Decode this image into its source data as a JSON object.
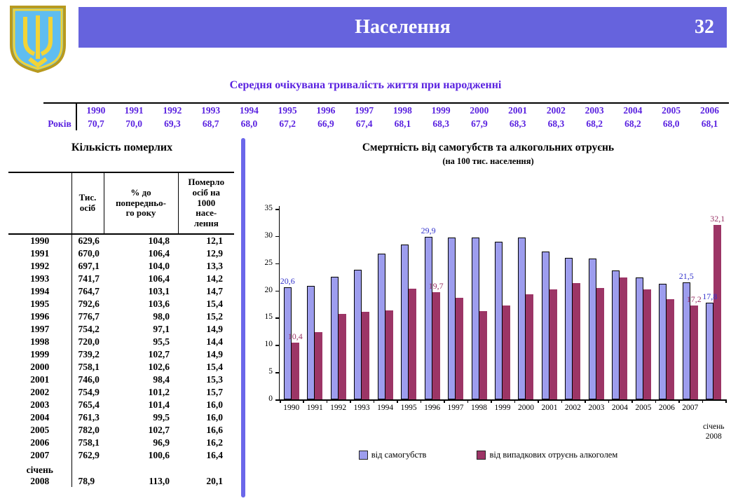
{
  "header": {
    "title": "Населення",
    "page_number": "32",
    "banner_color": "#6663dd",
    "coat_of_arms_icon": "ukraine-coat-of-arms"
  },
  "life_expectancy": {
    "title": "Середня очікувана тривалість життя при народженні",
    "row_label": "Років",
    "years": [
      "1990",
      "1991",
      "1992",
      "1993",
      "1994",
      "1995",
      "1996",
      "1997",
      "1998",
      "1999",
      "2000",
      "2001",
      "2002",
      "2003",
      "2004",
      "2005",
      "2006"
    ],
    "values": [
      "70,7",
      "70,0",
      "69,3",
      "68,7",
      "68,0",
      "67,2",
      "66,9",
      "67,4",
      "68,1",
      "68,3",
      "67,9",
      "68,3",
      "68,3",
      "68,2",
      "68,2",
      "68,0",
      "68,1"
    ]
  },
  "deaths_table": {
    "title": "Кількість померлих",
    "headers": [
      "",
      "Тис.\nосіб",
      "% до\nпопередньо-\nго року",
      "Померло\nосіб на\n1000\nнасе-\nлення"
    ],
    "rows": [
      [
        "1990",
        "629,6",
        "104,8",
        "12,1"
      ],
      [
        "1991",
        "670,0",
        "106,4",
        "12,9"
      ],
      [
        "1992",
        "697,1",
        "104,0",
        "13,3"
      ],
      [
        "1993",
        "741,7",
        "106,4",
        "14,2"
      ],
      [
        "1994",
        "764,7",
        "103,1",
        "14,7"
      ],
      [
        "1995",
        "792,6",
        "103,6",
        "15,4"
      ],
      [
        "1996",
        "776,7",
        "98,0",
        "15,2"
      ],
      [
        "1997",
        "754,2",
        "97,1",
        "14,9"
      ],
      [
        "1998",
        "720,0",
        "95,5",
        "14,4"
      ],
      [
        "1999",
        "739,2",
        "102,7",
        "14,9"
      ],
      [
        "2000",
        "758,1",
        "102,6",
        "15,4"
      ],
      [
        "2001",
        "746,0",
        "98,4",
        "15,3"
      ],
      [
        "2002",
        "754,9",
        "101,2",
        "15,7"
      ],
      [
        "2003",
        "765,4",
        "101,4",
        "16,0"
      ],
      [
        "2004",
        "761,3",
        "99,5",
        "16,0"
      ],
      [
        "2005",
        "782,0",
        "102,7",
        "16,6"
      ],
      [
        "2006",
        "758,1",
        "96,9",
        "16,2"
      ],
      [
        "2007",
        "762,9",
        "100,6",
        "16,4"
      ],
      [
        "січень\n2008",
        "78,9",
        "113,0",
        "20,1"
      ]
    ]
  },
  "chart_data": {
    "type": "bar",
    "title": "Смертність від самогубств та алкогольних отруєнь",
    "subtitle": "(на 100 тис. населення)",
    "categories": [
      "1990",
      "1991",
      "1992",
      "1993",
      "1994",
      "1995",
      "1996",
      "1997",
      "1998",
      "1999",
      "2000",
      "2001",
      "2002",
      "2003",
      "2004",
      "2005",
      "2006",
      "2007",
      "січень\n2008"
    ],
    "series": [
      {
        "name": "від самогубств",
        "color": "#9d9dee",
        "values": [
          20.6,
          20.8,
          22.5,
          23.8,
          26.8,
          28.4,
          29.9,
          29.7,
          29.7,
          29.0,
          29.7,
          27.2,
          26.0,
          25.8,
          23.7,
          22.4,
          21.2,
          21.5,
          17.8
        ]
      },
      {
        "name": "від випадкових отруєнь алкоголем",
        "color": "#9c3566",
        "values": [
          10.4,
          12.4,
          15.7,
          16.1,
          16.3,
          20.3,
          19.7,
          18.6,
          16.2,
          17.3,
          19.3,
          20.2,
          21.4,
          20.4,
          22.4,
          20.2,
          18.4,
          17.2,
          32.1
        ]
      }
    ],
    "ylim": [
      0,
      35
    ],
    "yticks": [
      0,
      5,
      10,
      15,
      20,
      25,
      30,
      35
    ],
    "grid": false,
    "legend_position": "bottom",
    "label_colors": [
      "#3333cc",
      "#993366"
    ],
    "data_labels": [
      {
        "series": 0,
        "index": 0,
        "text": "20,6"
      },
      {
        "series": 1,
        "index": 0,
        "text": "10,4"
      },
      {
        "series": 0,
        "index": 6,
        "text": "29,9"
      },
      {
        "series": 1,
        "index": 6,
        "text": "19,7"
      },
      {
        "series": 0,
        "index": 17,
        "text": "21,5"
      },
      {
        "series": 1,
        "index": 17,
        "text": "17,2"
      },
      {
        "series": 0,
        "index": 18,
        "text": "17,8"
      },
      {
        "series": 1,
        "index": 18,
        "text": "32,1"
      }
    ]
  }
}
